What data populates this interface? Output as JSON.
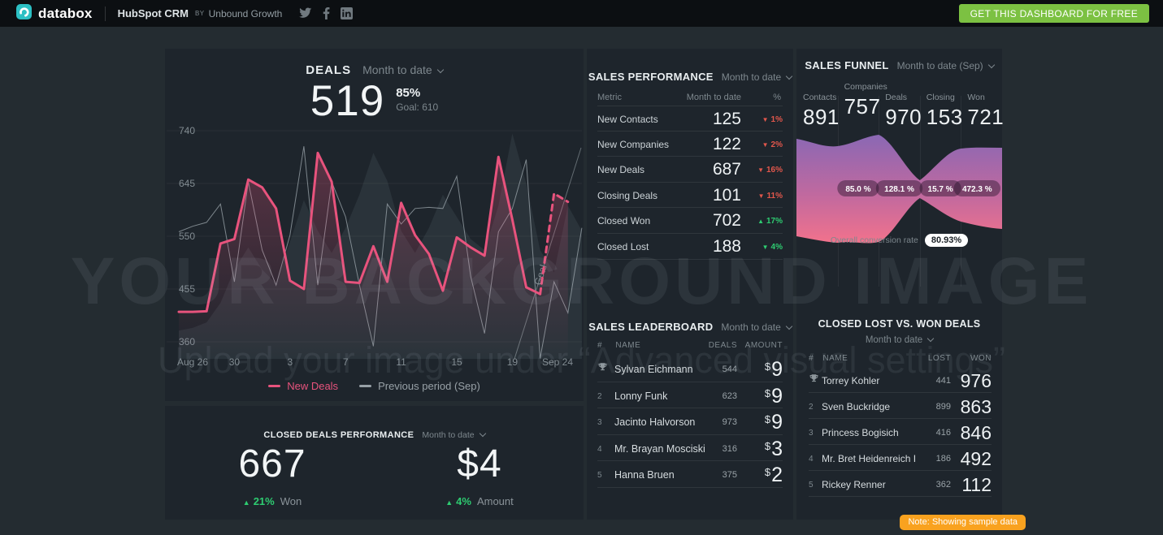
{
  "topbar": {
    "brand": "databox",
    "dashboard_title": "HubSpot CRM",
    "by_label": "BY",
    "author": "Unbound Growth",
    "cta_button": "GET THIS DASHBOARD FOR FREE",
    "cta_color": "#7cc142",
    "social_icons": [
      "twitter-icon",
      "facebook-icon",
      "linkedin-icon"
    ]
  },
  "watermark": {
    "line1": "YOUR BACKGROUND IMAGE",
    "line2": "Upload your image under “Advanced visual settings”"
  },
  "deals": {
    "title": "DEALS",
    "range_label": "Month to date",
    "value": "519",
    "percent": "85%",
    "goal": "Goal: 610",
    "legend": [
      {
        "label": "New Deals",
        "color": "#e8537d"
      },
      {
        "label": "Previous period (Sep)",
        "color": "#98a1a7"
      }
    ]
  },
  "closed_deals": {
    "title": "CLOSED DEALS PERFORMANCE",
    "range_label": "Month to date",
    "kpis": [
      {
        "value": "667",
        "delta": "21%",
        "direction": "up",
        "delta_color": "#2ecc71",
        "label": "Won"
      },
      {
        "value": "$4",
        "delta": "4%",
        "direction": "up",
        "delta_color": "#2ecc71",
        "label": "Amount"
      }
    ]
  },
  "sales_performance": {
    "title": "SALES PERFORMANCE",
    "range_label": "Month to date",
    "columns": [
      "Metric",
      "Month to date",
      "%"
    ],
    "rows": [
      {
        "metric": "New Contacts",
        "value": "125",
        "delta": "1%",
        "direction": "down",
        "color": "#e2574c"
      },
      {
        "metric": "New Companies",
        "value": "122",
        "delta": "2%",
        "direction": "down",
        "color": "#e2574c"
      },
      {
        "metric": "New Deals",
        "value": "687",
        "delta": "16%",
        "direction": "down",
        "color": "#e2574c"
      },
      {
        "metric": "Closing Deals",
        "value": "101",
        "delta": "11%",
        "direction": "down",
        "color": "#e2574c"
      },
      {
        "metric": "Closed Won",
        "value": "702",
        "delta": "17%",
        "direction": "up",
        "color": "#2ecc71"
      },
      {
        "metric": "Closed Lost",
        "value": "188",
        "delta": "4%",
        "direction": "down",
        "color": "#2ecc71"
      }
    ]
  },
  "sales_leaderboard": {
    "title": "SALES LEADERBOARD",
    "range_label": "Month to date",
    "columns": [
      "#",
      "NAME",
      "DEALS",
      "AMOUNT"
    ],
    "rows": [
      {
        "rank": "1",
        "trophy": true,
        "name": "Sylvan Eichmann",
        "deals": "544",
        "currency": "$",
        "amount": "9"
      },
      {
        "rank": "2",
        "trophy": false,
        "name": "Lonny Funk",
        "deals": "623",
        "currency": "$",
        "amount": "9"
      },
      {
        "rank": "3",
        "trophy": false,
        "name": "Jacinto Halvorson",
        "deals": "973",
        "currency": "$",
        "amount": "9"
      },
      {
        "rank": "4",
        "trophy": false,
        "name": "Mr. Brayan Mosciski",
        "deals": "316",
        "currency": "$",
        "amount": "3"
      },
      {
        "rank": "5",
        "trophy": false,
        "name": "Hanna Bruen",
        "deals": "375",
        "currency": "$",
        "amount": "2"
      }
    ]
  },
  "sales_funnel": {
    "title": "SALES FUNNEL",
    "range_label": "Month to date (Sep)",
    "overall_label": "Overall conversion rate",
    "overall_value": "80.93%"
  },
  "closed_lost_won": {
    "title": "CLOSED LOST VS. WON DEALS",
    "range_label": "Month to date",
    "columns": [
      "#",
      "NAME",
      "LOST",
      "WON"
    ],
    "rows": [
      {
        "rank": "1",
        "trophy": true,
        "name": "Torrey Kohler",
        "lost": "441",
        "won": "976"
      },
      {
        "rank": "2",
        "trophy": false,
        "name": "Sven Buckridge",
        "lost": "899",
        "won": "863"
      },
      {
        "rank": "3",
        "trophy": false,
        "name": "Princess Bogisich",
        "lost": "416",
        "won": "846"
      },
      {
        "rank": "4",
        "trophy": false,
        "name": "Mr. Bret Heidenreich I",
        "lost": "186",
        "won": "492"
      },
      {
        "rank": "5",
        "trophy": false,
        "name": "Rickey Renner",
        "lost": "362",
        "won": "112"
      }
    ]
  },
  "note_badge": "Note: Showing sample data",
  "chart_data": [
    {
      "type": "line",
      "title": "DEALS",
      "ylim": [
        360,
        740
      ],
      "y_ticks": [
        740,
        645,
        550,
        455,
        360
      ],
      "x_count": 30,
      "x_ticks": [
        {
          "index": 0,
          "label": "Aug 26"
        },
        {
          "index": 4,
          "label": "30"
        },
        {
          "index": 8,
          "label": "3"
        },
        {
          "index": 12,
          "label": "7"
        },
        {
          "index": 16,
          "label": "11"
        },
        {
          "index": 20,
          "label": "15"
        },
        {
          "index": 24,
          "label": "19"
        },
        {
          "index": 29,
          "label": "Sep 24"
        }
      ],
      "series": [
        {
          "name": "New Deals",
          "color": "#e8537d",
          "dash_from": 26,
          "values": [
            414,
            414,
            415,
            537,
            545,
            652,
            638,
            600,
            470,
            455,
            700,
            648,
            468,
            466,
            532,
            468,
            610,
            552,
            518,
            452,
            548,
            530,
            515,
            693,
            580,
            458,
            446,
            627,
            612
          ]
        },
        {
          "name": "Previous period (Sep)",
          "color": "#a7b0b6",
          "values": [
            558,
            568,
            575,
            608,
            468,
            648,
            525,
            462,
            552,
            712,
            462,
            648,
            585,
            462,
            352,
            608,
            572,
            600,
            602,
            600,
            658,
            478,
            375,
            558,
            600,
            688,
            330,
            468,
            412,
            565
          ]
        }
      ],
      "background_area": {
        "color": "rgba(160,175,185,0.10)",
        "values": [
          380,
          385,
          395,
          430,
          490,
          530,
          490,
          465,
          540,
          615,
          560,
          520,
          565,
          625,
          700,
          650,
          560,
          520,
          565,
          625,
          585,
          545,
          525,
          605,
          735,
          645,
          525,
          485,
          605,
          560
        ]
      },
      "goal_line": {
        "label": "Goal"
      },
      "grid": "horizontal",
      "legend_position": "bottom"
    },
    {
      "type": "funnel",
      "title": "SALES FUNNEL",
      "stages": [
        {
          "label": "Contacts",
          "value": "891"
        },
        {
          "label": "Companies",
          "value": "757"
        },
        {
          "label": "Deals",
          "value": "970"
        },
        {
          "label": "Closing",
          "value": "153"
        },
        {
          "label": "Won",
          "value": "721"
        }
      ],
      "conversion_rates": [
        "85.0 %",
        "128.1 %",
        "15.7 %",
        "472.3 %"
      ],
      "overall_conversion_rate": "80.93%",
      "gradient": {
        "top": "#8a68b4",
        "mid": "#c0699f",
        "bottom": "#f2728c"
      }
    }
  ]
}
